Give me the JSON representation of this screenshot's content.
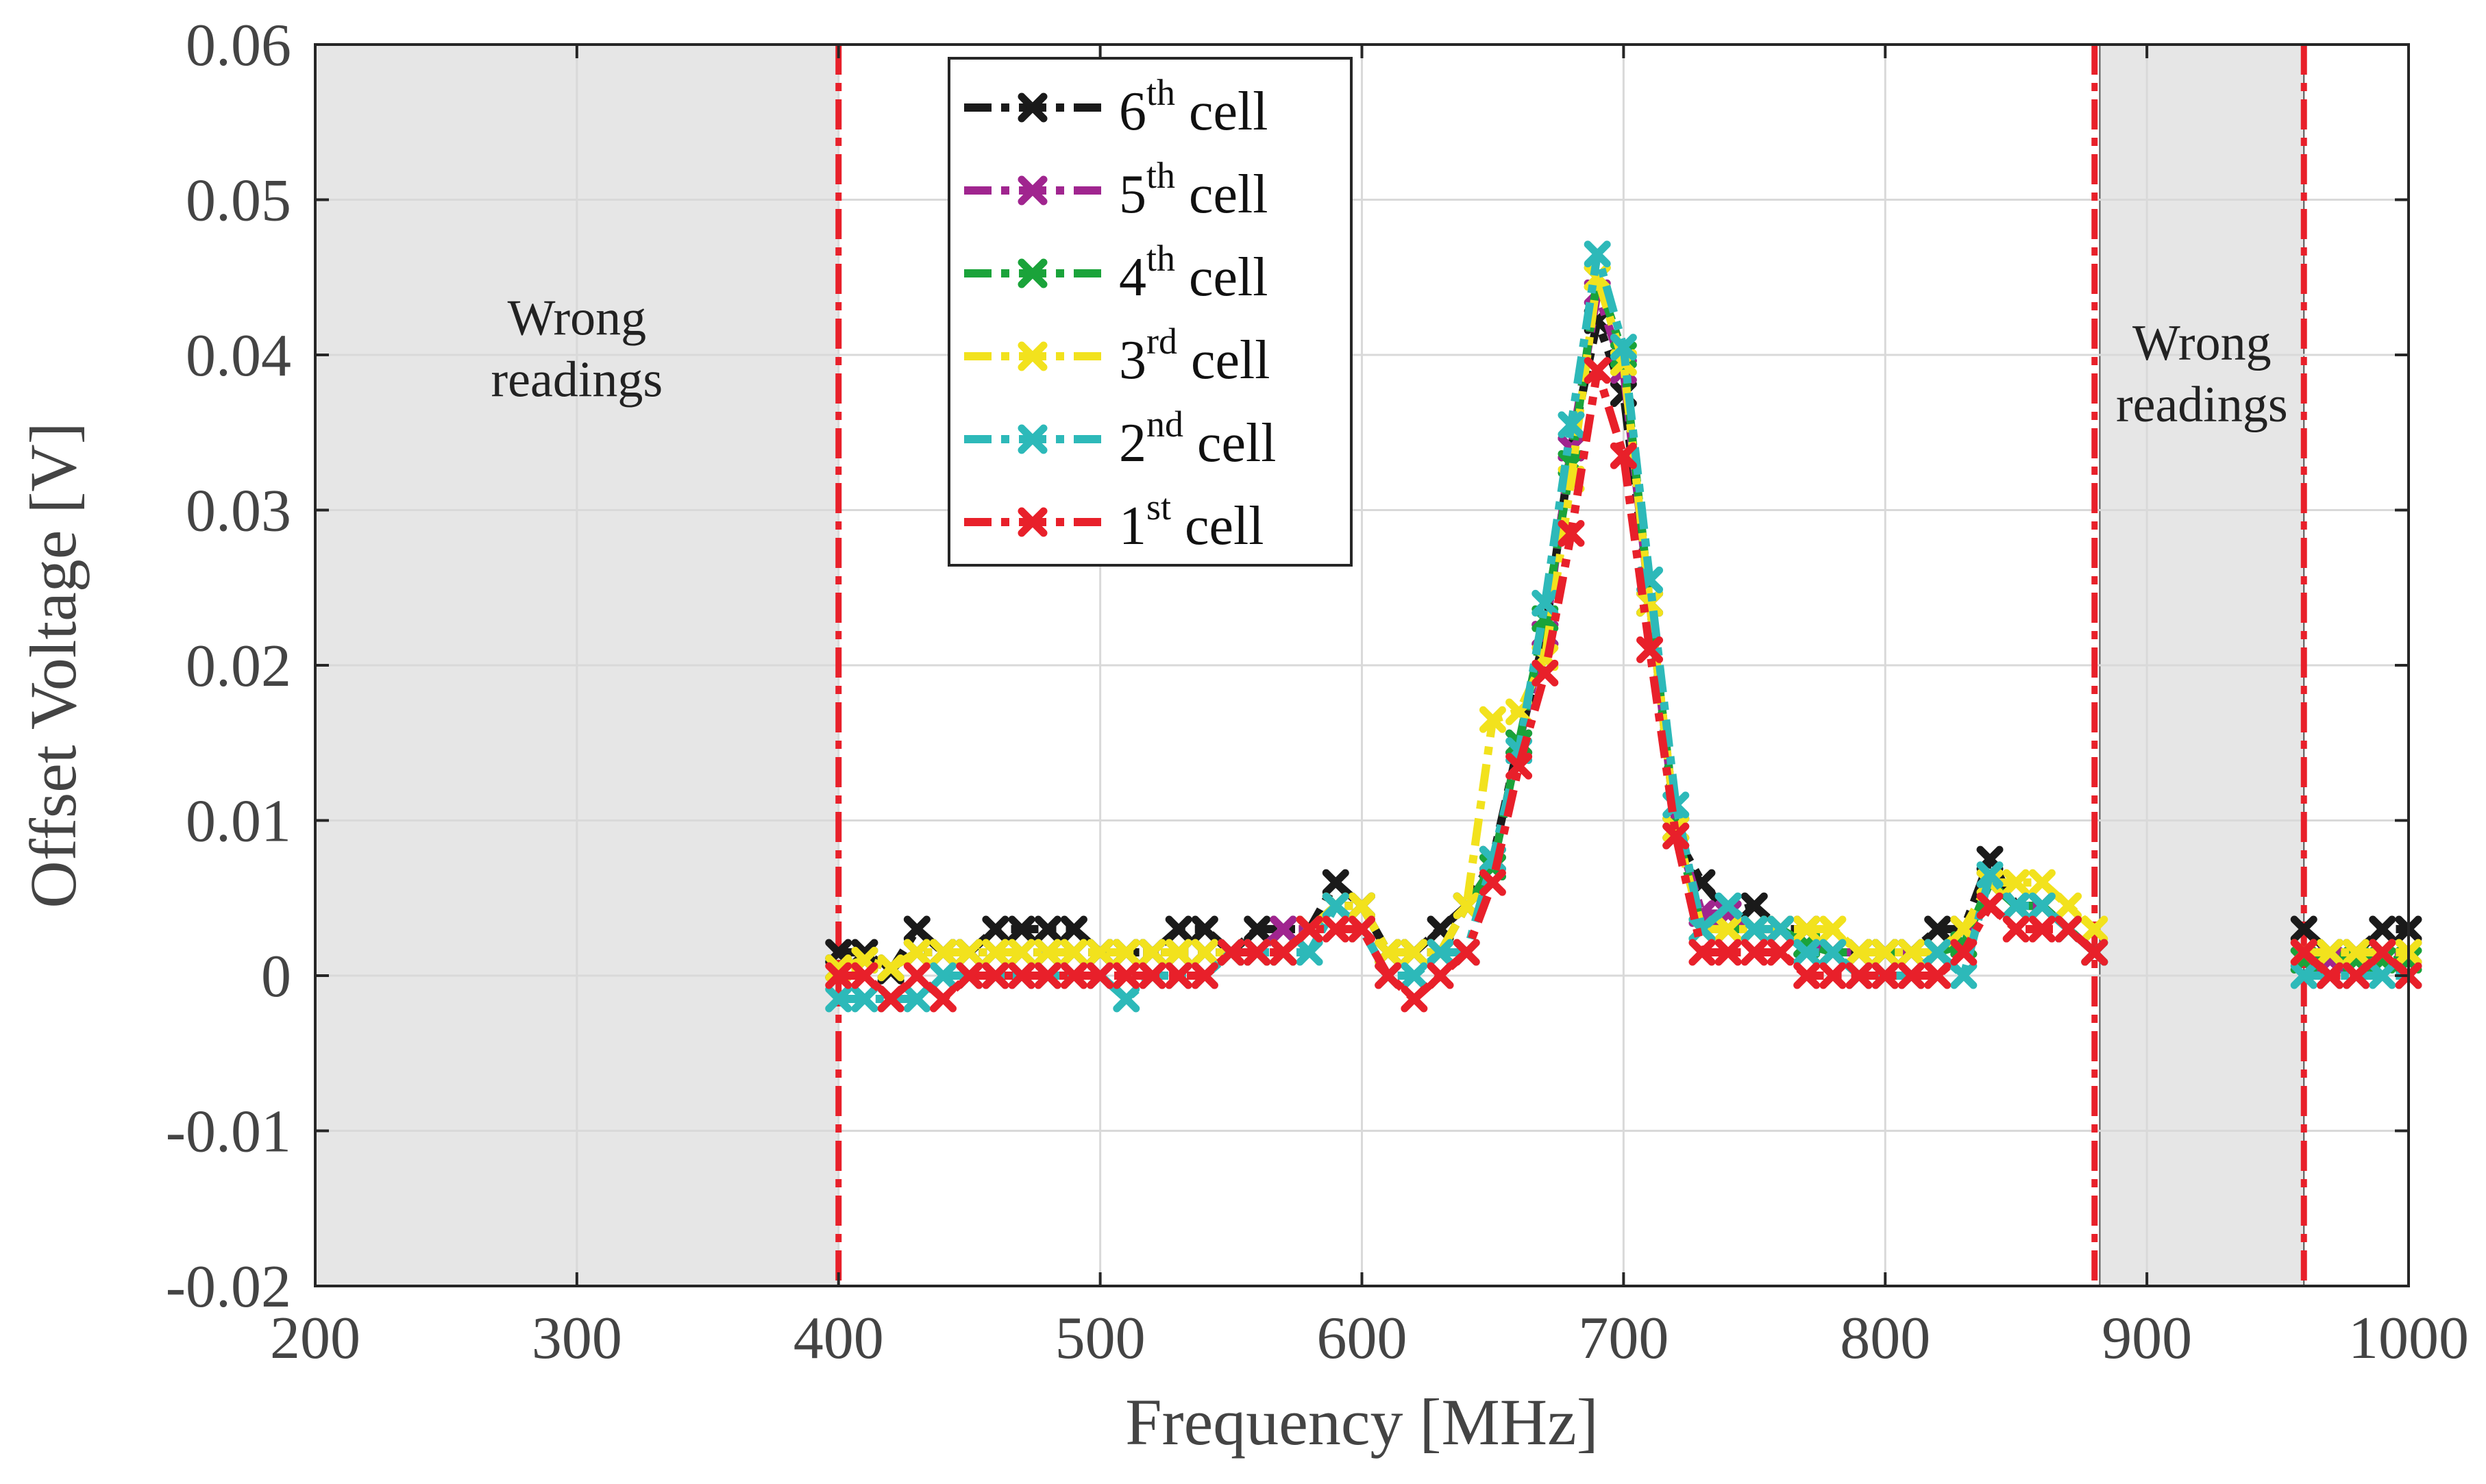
{
  "chart_data": {
    "type": "line",
    "title": "",
    "xlabel": "Frequency [MHz]",
    "ylabel": "Offset Voltage [V]",
    "xlim": [
      200,
      1000
    ],
    "ylim": [
      -0.02,
      0.06
    ],
    "xticks": [
      200,
      300,
      400,
      500,
      600,
      700,
      800,
      900,
      1000
    ],
    "xtick_labels": [
      "200",
      "300",
      "400",
      "500",
      "600",
      "700",
      "800",
      "900",
      "1000"
    ],
    "yticks": [
      -0.02,
      -0.01,
      0,
      0.01,
      0.02,
      0.03,
      0.04,
      0.05,
      0.06
    ],
    "ytick_labels": [
      "-0.02",
      "-0.01",
      "0",
      "0.01",
      "0.02",
      "0.03",
      "0.04",
      "0.05",
      "0.06"
    ],
    "grid": true,
    "legend_position": "top-center",
    "shaded_regions": [
      {
        "x_start": 200,
        "x_end": 400,
        "label_lines": [
          "Wrong",
          "readings"
        ],
        "label_x": 300,
        "label_y": 0.0413,
        "color": "#e6e6e6"
      },
      {
        "x_start": 882,
        "x_end": 960,
        "label_lines": [
          "Wrong",
          "readings"
        ],
        "label_x": 921,
        "label_y": 0.0397,
        "color": "#e6e6e6"
      }
    ],
    "vertical_lines": [
      {
        "x": 400,
        "color": "#e8202a"
      },
      {
        "x": 880,
        "color": "#e8202a"
      },
      {
        "x": 960,
        "color": "#e8202a"
      }
    ],
    "series": [
      {
        "name": "6th cell",
        "label_main": "6",
        "label_sup": "th",
        "label_suffix": " cell",
        "color": "#1a1a1a",
        "segments": [
          {
            "x": [
              400,
              410,
              420,
              430,
              440,
              450,
              460,
              470,
              480,
              490,
              500,
              510,
              520,
              530,
              540,
              550,
              560,
              570,
              580,
              590,
              600,
              610,
              620,
              630,
              640,
              650,
              660,
              670,
              680,
              690,
              700,
              710,
              720,
              730,
              740,
              750,
              760,
              770,
              780,
              790,
              800,
              810,
              820,
              830,
              840,
              850,
              860,
              870,
              880
            ],
            "y": [
              0.0015,
              0.0015,
              0.0003,
              0.003,
              0.0015,
              0.0015,
              0.003,
              0.003,
              0.003,
              0.003,
              0.0015,
              0.0015,
              0.0015,
              0.003,
              0.003,
              0.0015,
              0.003,
              0.003,
              0.003,
              0.006,
              0.0045,
              0.0015,
              0.0015,
              0.003,
              0.0045,
              0.0075,
              0.015,
              0.022,
              0.034,
              0.0422,
              0.0375,
              0.024,
              0.009,
              0.006,
              0.004,
              0.0045,
              0.003,
              0.003,
              0.0015,
              0.0015,
              0.0015,
              0.0015,
              0.003,
              0.003,
              0.0075,
              0.0045,
              0.0045,
              0.003,
              0.0015
            ]
          },
          {
            "x": [
              960,
              970,
              980,
              990,
              1000
            ],
            "y": [
              0.003,
              0.0015,
              0.0015,
              0.003,
              0.003
            ]
          }
        ]
      },
      {
        "name": "5th cell",
        "label_main": "5",
        "label_sup": "th",
        "label_suffix": " cell",
        "color": "#a0258f",
        "segments": [
          {
            "x": [
              400,
              410,
              420,
              430,
              440,
              450,
              460,
              470,
              480,
              490,
              500,
              510,
              520,
              530,
              540,
              550,
              560,
              570,
              580,
              590,
              600,
              610,
              620,
              630,
              640,
              650,
              660,
              670,
              680,
              690,
              700,
              710,
              720,
              730,
              740,
              750,
              760,
              770,
              780,
              790,
              800,
              810,
              820,
              830,
              840,
              850,
              860,
              870,
              880
            ],
            "y": [
              0.0005,
              0.001,
              0.0005,
              0.0015,
              0.0015,
              0.0015,
              0.0015,
              0.0015,
              0.0015,
              0.0015,
              0.0015,
              0.0015,
              0.0015,
              0.0015,
              0.0015,
              0.0015,
              0.0015,
              0.003,
              0.003,
              0.0045,
              0.0045,
              0.0015,
              0.0015,
              0.0015,
              0.0045,
              0.007,
              0.015,
              0.022,
              0.034,
              0.044,
              0.039,
              0.024,
              0.0095,
              0.004,
              0.004,
              0.003,
              0.003,
              0.002,
              0.0015,
              0.0015,
              0.0015,
              0.0015,
              0.0015,
              0.002,
              0.006,
              0.0045,
              0.0045,
              0.003,
              0.0015
            ]
          },
          {
            "x": [
              960,
              970,
              980,
              990,
              1000
            ],
            "y": [
              0.001,
              0.001,
              0.001,
              0.0015,
              0.0015
            ]
          }
        ]
      },
      {
        "name": "4th cell",
        "label_main": "4",
        "label_sup": "th",
        "label_suffix": " cell",
        "color": "#1aa33a",
        "segments": [
          {
            "x": [
              400,
              410,
              420,
              430,
              440,
              450,
              460,
              470,
              480,
              490,
              500,
              510,
              520,
              530,
              540,
              550,
              560,
              570,
              580,
              590,
              600,
              610,
              620,
              630,
              640,
              650,
              660,
              670,
              680,
              690,
              700,
              710,
              720,
              730,
              740,
              750,
              760,
              770,
              780,
              790,
              800,
              810,
              820,
              830,
              840,
              850,
              860,
              870,
              880
            ],
            "y": [
              0.0005,
              0.001,
              0.0005,
              0.0015,
              0.0015,
              0.0015,
              0.0015,
              0.0015,
              0.0015,
              0.0015,
              0.0015,
              0.0015,
              0.0015,
              0.0015,
              0.0015,
              0.0015,
              0.0015,
              0.0015,
              0.003,
              0.0045,
              0.0045,
              0.0015,
              0.0015,
              0.0015,
              0.0045,
              0.007,
              0.015,
              0.023,
              0.033,
              0.045,
              0.04,
              0.024,
              0.0095,
              0.003,
              0.003,
              0.003,
              0.003,
              0.002,
              0.0015,
              0.0015,
              0.0015,
              0.0015,
              0.0015,
              0.002,
              0.006,
              0.0045,
              0.0045,
              0.003,
              0.0015
            ]
          },
          {
            "x": [
              960,
              970,
              980,
              990,
              1000
            ],
            "y": [
              0.001,
              0.0015,
              0.001,
              0.001,
              0.001
            ]
          }
        ]
      },
      {
        "name": "3rd cell",
        "label_main": "3",
        "label_sup": "rd",
        "label_suffix": " cell",
        "color": "#f2e21d",
        "segments": [
          {
            "x": [
              400,
              410,
              420,
              430,
              440,
              450,
              460,
              470,
              480,
              490,
              500,
              510,
              520,
              530,
              540,
              550,
              560,
              570,
              580,
              590,
              600,
              610,
              620,
              630,
              640,
              650,
              660,
              670,
              680,
              690,
              700,
              710,
              720,
              730,
              740,
              750,
              760,
              770,
              780,
              790,
              800,
              810,
              820,
              830,
              840,
              850,
              860,
              870,
              880
            ],
            "y": [
              0.0005,
              0.001,
              0.0005,
              0.0015,
              0.0015,
              0.0015,
              0.0015,
              0.0015,
              0.0015,
              0.0015,
              0.0015,
              0.0015,
              0.0015,
              0.0015,
              0.0015,
              0.0015,
              0.0015,
              0.0015,
              0.003,
              0.0045,
              0.0045,
              0.0015,
              0.0015,
              0.0015,
              0.0045,
              0.0165,
              0.017,
              0.0205,
              0.032,
              0.045,
              0.0395,
              0.024,
              0.0095,
              0.003,
              0.003,
              0.003,
              0.003,
              0.003,
              0.003,
              0.0015,
              0.0015,
              0.0015,
              0.0015,
              0.003,
              0.006,
              0.006,
              0.006,
              0.0045,
              0.003
            ]
          },
          {
            "x": [
              960,
              970,
              980,
              990,
              1000
            ],
            "y": [
              0.0015,
              0.0015,
              0.0015,
              0.0015,
              0.0015
            ]
          }
        ]
      },
      {
        "name": "2nd cell",
        "label_main": "2",
        "label_sup": "nd",
        "label_suffix": " cell",
        "color": "#2db9b9",
        "segments": [
          {
            "x": [
              400,
              410,
              420,
              430,
              440,
              450,
              460,
              470,
              480,
              490,
              500,
              510,
              520,
              530,
              540,
              550,
              560,
              570,
              580,
              590,
              600,
              610,
              620,
              630,
              640,
              650,
              660,
              670,
              680,
              690,
              700,
              710,
              720,
              730,
              740,
              750,
              760,
              770,
              780,
              790,
              800,
              810,
              820,
              830,
              840,
              850,
              860,
              870,
              880
            ],
            "y": [
              -0.0015,
              -0.0015,
              -0.0015,
              -0.0015,
              0.0,
              0.0,
              0.0,
              0.0,
              0.0,
              0.0,
              0.0,
              -0.0015,
              0.0,
              0.0,
              0.0,
              0.0015,
              0.0015,
              0.0015,
              0.0015,
              0.0045,
              0.003,
              0.0,
              0.0,
              0.0015,
              0.0015,
              0.0075,
              0.0145,
              0.024,
              0.0355,
              0.0465,
              0.0405,
              0.0255,
              0.011,
              0.003,
              0.0045,
              0.003,
              0.003,
              0.0015,
              0.0015,
              0.0,
              0.0,
              0.0,
              0.0015,
              0.0,
              0.0065,
              0.0045,
              0.0045,
              0.003,
              0.0015
            ]
          },
          {
            "x": [
              960,
              970,
              980,
              990,
              1000
            ],
            "y": [
              0.0,
              0.0,
              0.0,
              0.0,
              0.0
            ]
          }
        ]
      },
      {
        "name": "1st cell",
        "label_main": "1",
        "label_sup": "st",
        "label_suffix": " cell",
        "color": "#e8202a",
        "segments": [
          {
            "x": [
              400,
              410,
              420,
              430,
              440,
              450,
              460,
              470,
              480,
              490,
              500,
              510,
              520,
              530,
              540,
              550,
              560,
              570,
              580,
              590,
              600,
              610,
              620,
              630,
              640,
              650,
              660,
              670,
              680,
              690,
              700,
              710,
              720,
              730,
              740,
              750,
              760,
              770,
              780,
              790,
              800,
              810,
              820,
              830,
              840,
              850,
              860,
              870,
              880
            ],
            "y": [
              0.0,
              0.0,
              -0.0015,
              0.0,
              -0.0015,
              0.0,
              0.0,
              0.0,
              0.0,
              0.0,
              0.0,
              0.0,
              0.0,
              0.0,
              0.0,
              0.0015,
              0.0015,
              0.0015,
              0.003,
              0.003,
              0.003,
              0.0,
              -0.0015,
              0.0,
              0.0015,
              0.006,
              0.0135,
              0.0195,
              0.0285,
              0.039,
              0.0335,
              0.021,
              0.009,
              0.0015,
              0.0015,
              0.0015,
              0.0015,
              0.0,
              0.0,
              0.0,
              0.0,
              0.0,
              0.0,
              0.0015,
              0.0045,
              0.003,
              0.003,
              0.003,
              0.0015
            ]
          },
          {
            "x": [
              960,
              970,
              980,
              990,
              1000
            ],
            "y": [
              0.0015,
              0.0,
              0.0,
              0.0015,
              0.0
            ]
          }
        ]
      }
    ]
  }
}
